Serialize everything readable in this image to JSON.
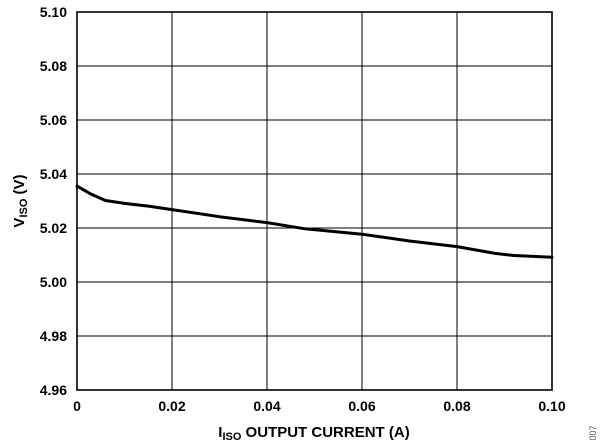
{
  "chart_data": {
    "type": "line",
    "title": "",
    "xlabel": {
      "main": "I",
      "sub": "ISO",
      "rest": " OUTPUT CURRENT (A)"
    },
    "ylabel": {
      "main": "V",
      "sub": "ISO",
      "rest": " (V)"
    },
    "xlim": [
      0,
      0.1
    ],
    "ylim": [
      4.96,
      5.1
    ],
    "xticks": [
      "0",
      "0.02",
      "0.04",
      "0.06",
      "0.08",
      "0.10"
    ],
    "yticks": [
      "4.96",
      "4.98",
      "5.00",
      "5.02",
      "5.04",
      "5.06",
      "5.08",
      "5.10"
    ],
    "grid": true,
    "series": [
      {
        "x": [
          0,
          0.003,
          0.006,
          0.01,
          0.015,
          0.02,
          0.03,
          0.04,
          0.048,
          0.06,
          0.07,
          0.08,
          0.088,
          0.092,
          0.1
        ],
        "y": [
          5.0355,
          5.0325,
          5.0302,
          5.0291,
          5.0281,
          5.0268,
          5.0242,
          5.022,
          5.0197,
          5.0177,
          5.0152,
          5.0131,
          5.0106,
          5.0098,
          5.0092
        ]
      }
    ],
    "figure_id": "007"
  }
}
